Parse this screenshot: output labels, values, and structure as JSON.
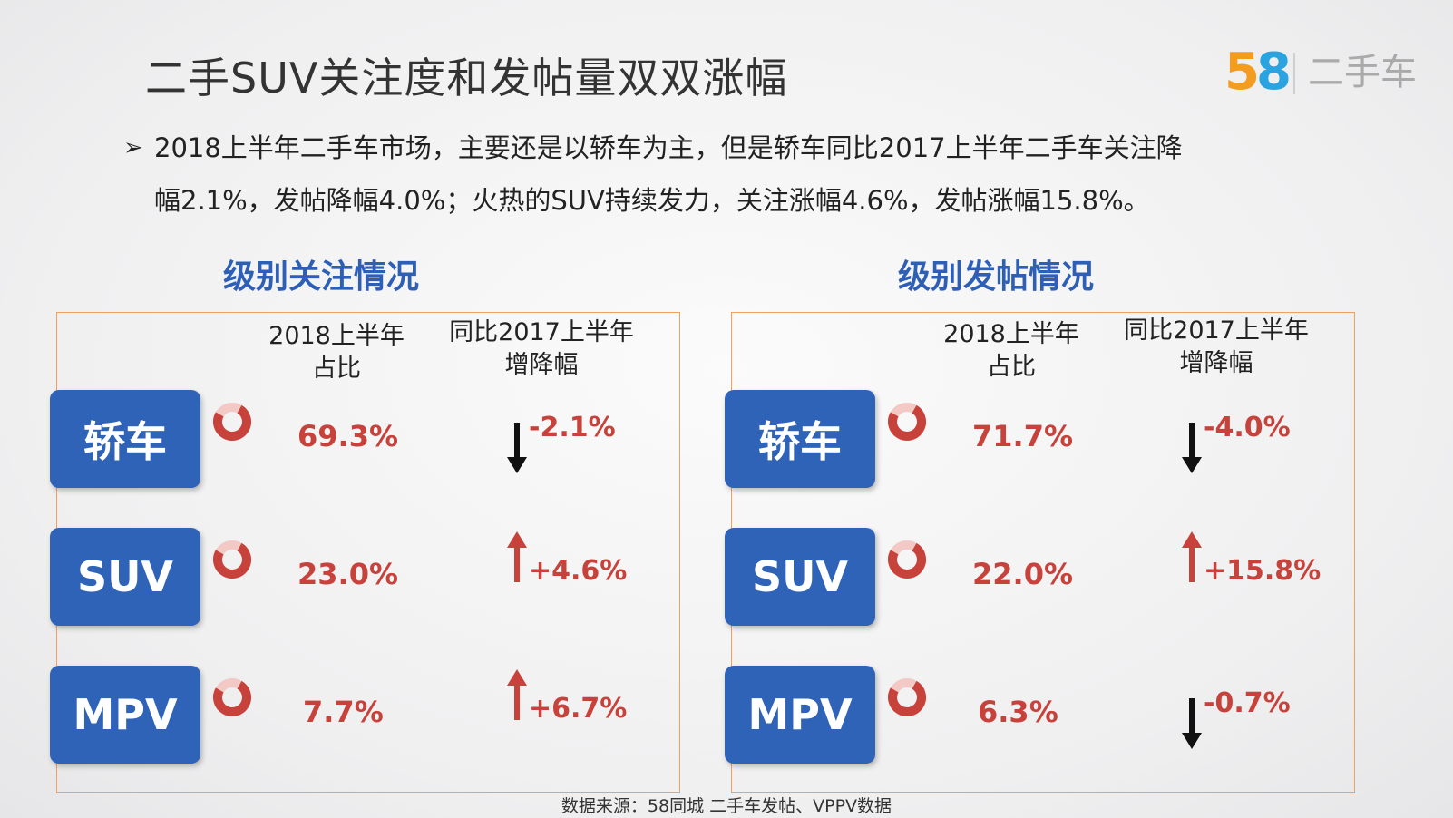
{
  "title": "二手SUV关注度和发帖量双双涨幅",
  "logo": {
    "number_5": "5",
    "number_8": "8",
    "text": "二手车"
  },
  "description": {
    "bullet": "➢",
    "line1": "2018上半年二手车市场，主要还是以轿车为主，但是轿车同比2017上半年二手车关注降",
    "line2": "幅2.1%，发帖降幅4.0%；火热的SUV持续发力，关注涨幅4.6%，发帖涨幅15.8%。"
  },
  "panels": [
    {
      "title": "级别关注情况",
      "col1": [
        "2018上半年",
        "占比"
      ],
      "col2": [
        "同比2017上半年",
        "增降幅"
      ],
      "rows": [
        {
          "label": "轿车",
          "share": "69.3%",
          "share_value": 69.3,
          "change": "-2.1%",
          "direction": "down"
        },
        {
          "label": "SUV",
          "share": "23.0%",
          "share_value": 23.0,
          "change": "+4.6%",
          "direction": "up"
        },
        {
          "label": "MPV",
          "share": "7.7%",
          "share_value": 7.7,
          "change": "+6.7%",
          "direction": "up"
        }
      ]
    },
    {
      "title": "级别发帖情况",
      "col1": [
        "2018上半年",
        "占比"
      ],
      "col2": [
        "同比2017上半年",
        "增降幅"
      ],
      "rows": [
        {
          "label": "轿车",
          "share": "71.7%",
          "share_value": 71.7,
          "change": "-4.0%",
          "direction": "down"
        },
        {
          "label": "SUV",
          "share": "22.0%",
          "share_value": 22.0,
          "change": "+15.8%",
          "direction": "up"
        },
        {
          "label": "MPV",
          "share": "6.3%",
          "share_value": 6.3,
          "change": "-0.7%",
          "direction": "down"
        }
      ]
    }
  ],
  "colors": {
    "accent_blue": "#2e63b8",
    "value_red": "#c8423c",
    "up_arrow": "#c8423c",
    "down_arrow": "#111111",
    "panel_border": "#f0a060"
  },
  "source": "数据来源：58同城 二手车发帖、VPPV数据"
}
